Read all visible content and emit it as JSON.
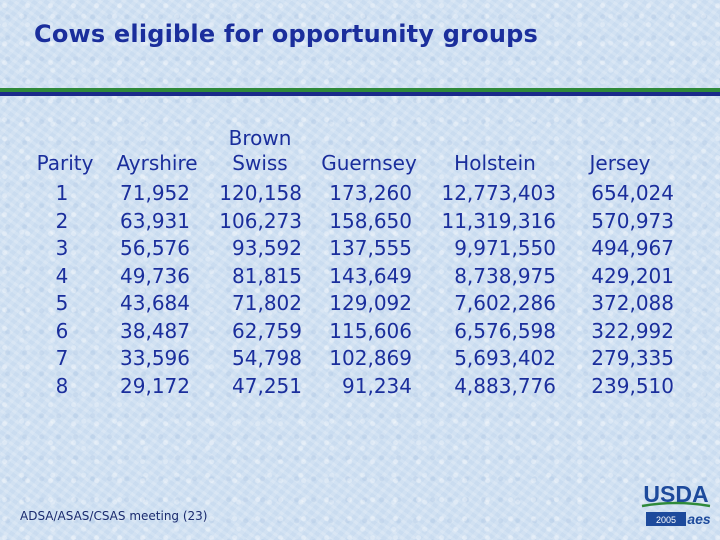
{
  "title": "Cows eligible for opportunity groups",
  "colors": {
    "title": "#1a2e9c",
    "rule_green": "#2f8a3a",
    "rule_navy": "#1a2a8a",
    "usda_blue": "#1d4a9c"
  },
  "table": {
    "headers": {
      "parity": "Parity",
      "ayrshire": "Ayrshire",
      "brown_swiss_line1": "Brown",
      "brown_swiss_line2": "Swiss",
      "guernsey": "Guernsey",
      "holstein": "Holstein",
      "jersey": "Jersey"
    },
    "parity": [
      "1",
      "2",
      "3",
      "4",
      "5",
      "6",
      "7",
      "8"
    ],
    "ayrshire": [
      "71,952",
      "63,931",
      "56,576",
      "49,736",
      "43,684",
      "38,487",
      "33,596",
      "29,172"
    ],
    "brown_swiss": [
      "120,158",
      "106,273",
      "93,592",
      "81,815",
      "71,802",
      "62,759",
      "54,798",
      "47,251"
    ],
    "guernsey": [
      "173,260",
      "158,650",
      "137,555",
      "143,649",
      "129,092",
      "115,606",
      "102,869",
      "91,234"
    ],
    "holstein": [
      "12,773,403",
      "11,319,316",
      "9,971,550",
      "8,738,975",
      "7,602,286",
      "6,576,598",
      "5,693,402",
      "4,883,776"
    ],
    "jersey": [
      "654,024",
      "570,973",
      "494,967",
      "429,201",
      "372,088",
      "322,992",
      "279,335",
      "239,510"
    ]
  },
  "footer": {
    "meeting": "ADSA/ASAS/CSAS meeting (23)"
  },
  "logo": {
    "text": "USDA",
    "year": "2005",
    "mark": "aes",
    "icon": "usda-logo-icon"
  }
}
